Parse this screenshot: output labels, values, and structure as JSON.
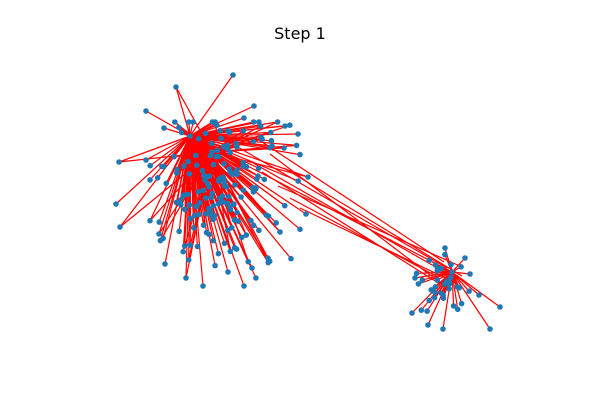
{
  "title": "Step 1",
  "colors": {
    "background": "#ffffff",
    "node": "#1f77b4",
    "edge": "#ff0000",
    "title_text": "#000000"
  },
  "graph": {
    "node_shape": "circle",
    "edge_style": "straight-line",
    "communities": [
      {
        "name": "",
        "hub": true,
        "approx_nodes": 200
      },
      {
        "name": "",
        "hub": true,
        "approx_nodes": 40
      }
    ],
    "bridges_between_communities": 10
  }
}
